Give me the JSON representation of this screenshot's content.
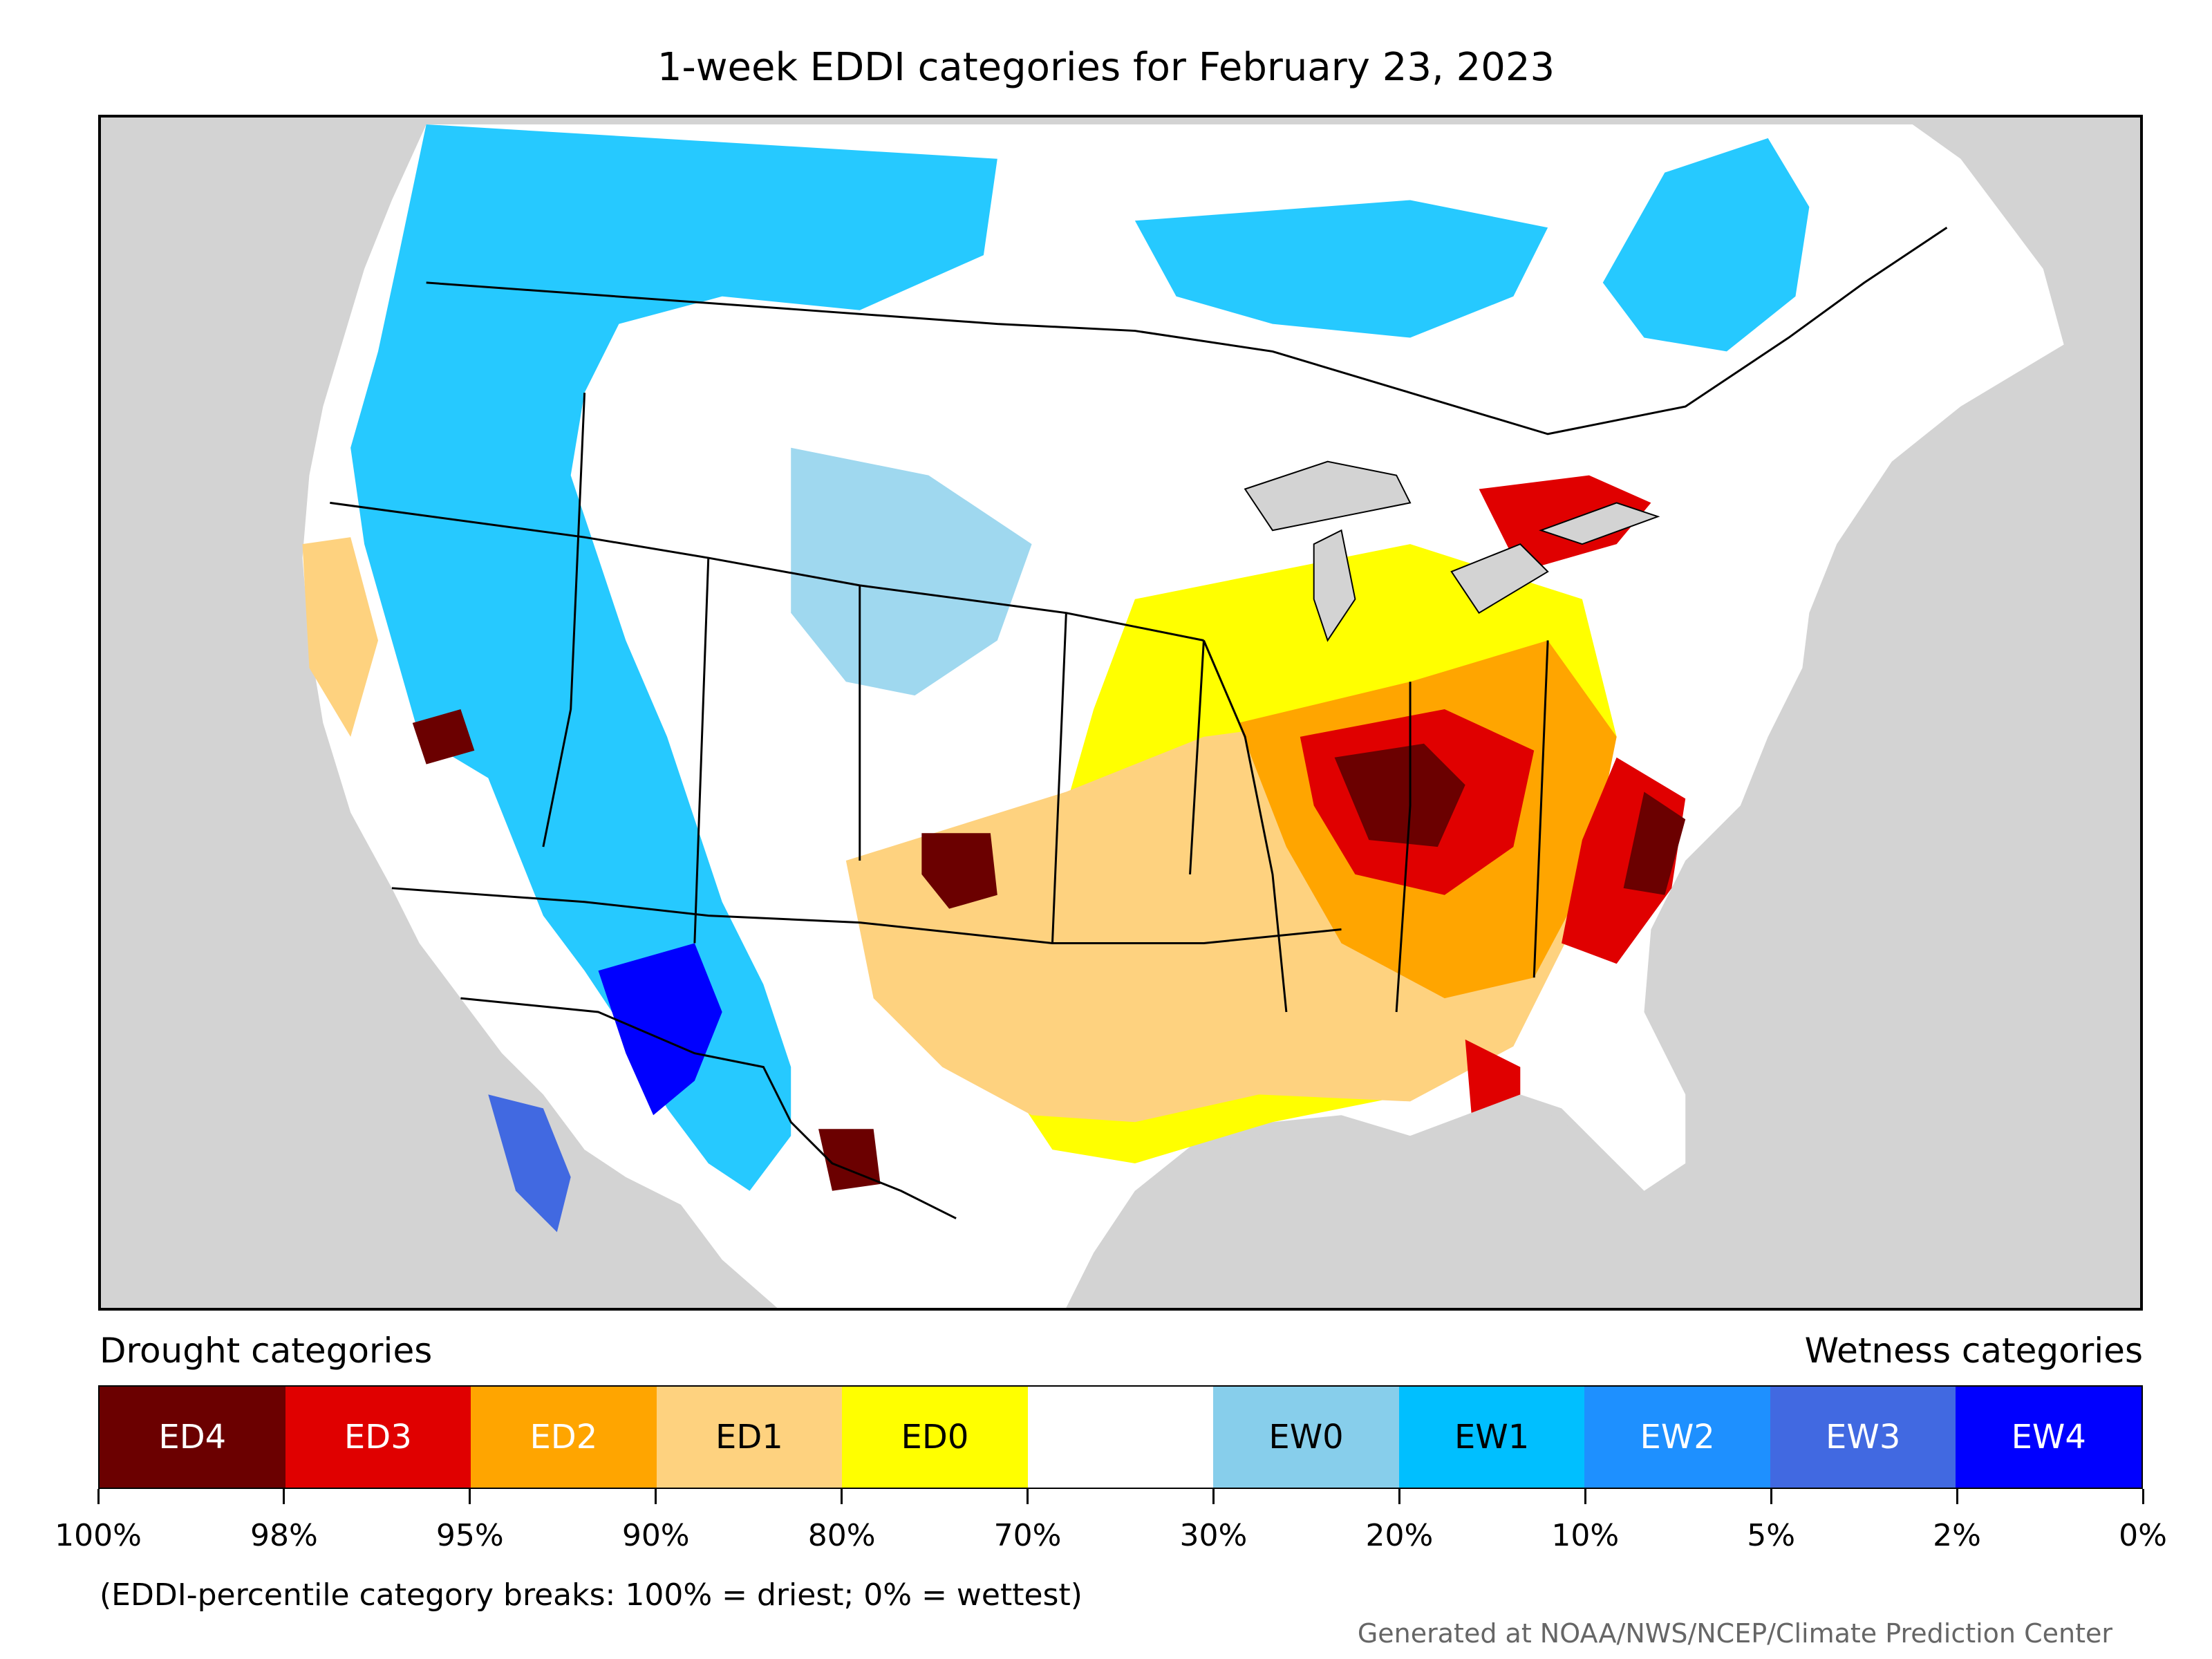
{
  "title": "1-week EDDI categories for February 23, 2023",
  "legend": {
    "drought_heading": "Drought categories",
    "wetness_heading": "Wetness categories",
    "categories": [
      {
        "label": "ED4",
        "color": "#6b0000",
        "text_color": "#ffffff"
      },
      {
        "label": "ED3",
        "color": "#e00000",
        "text_color": "#ffffff"
      },
      {
        "label": "ED2",
        "color": "#ffa500",
        "text_color": "#ffffff"
      },
      {
        "label": "ED1",
        "color": "#fed27f",
        "text_color": "#000000"
      },
      {
        "label": "ED0",
        "color": "#ffff00",
        "text_color": "#000000"
      },
      {
        "label": "",
        "color": "#ffffff",
        "text_color": "#000000"
      },
      {
        "label": "EW0",
        "color": "#87ceeb",
        "text_color": "#000000"
      },
      {
        "label": "EW1",
        "color": "#00bfff",
        "text_color": "#000000"
      },
      {
        "label": "EW2",
        "color": "#1e90ff",
        "text_color": "#ffffff"
      },
      {
        "label": "EW3",
        "color": "#4169e1",
        "text_color": "#ffffff"
      },
      {
        "label": "EW4",
        "color": "#0000ff",
        "text_color": "#ffffff"
      }
    ],
    "breaks": [
      "100%",
      "98%",
      "95%",
      "90%",
      "80%",
      "70%",
      "30%",
      "20%",
      "10%",
      "5%",
      "2%",
      "0%"
    ]
  },
  "note": "(EDDI-percentile category breaks: 100% = driest; 0% = wettest)",
  "credit": "Generated at NOAA/NWS/NCEP/Climate Prediction Center",
  "colors": {
    "map_background": "#d3d3d3",
    "land": "#ffffff",
    "boundary": "#000000"
  }
}
